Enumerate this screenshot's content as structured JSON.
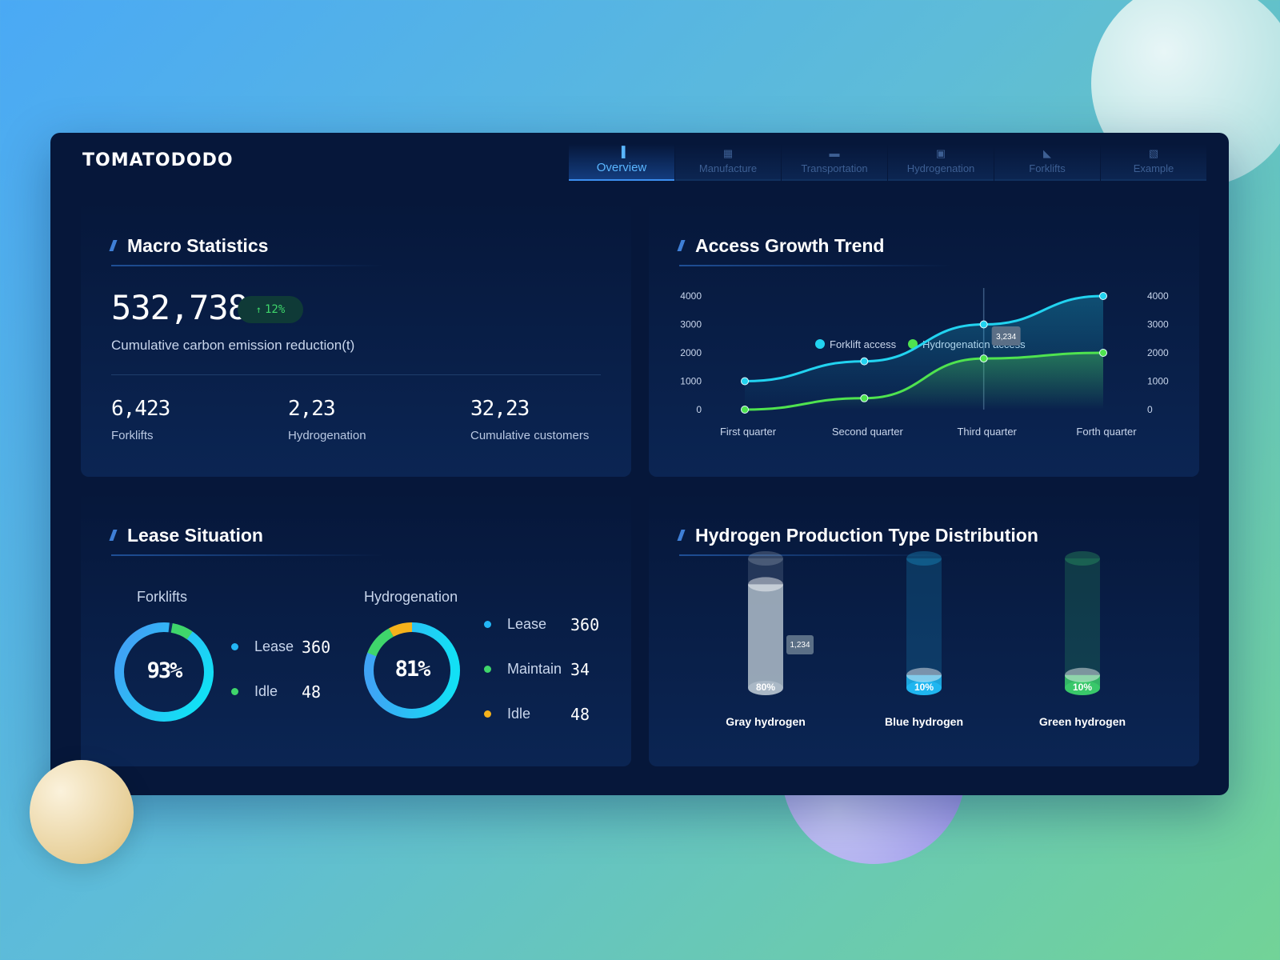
{
  "brand": {
    "logo": "TOMATODODO"
  },
  "nav": {
    "tabs": [
      {
        "label": "Overview",
        "icon": "bar-chart-icon",
        "glyph": "▐",
        "active": true
      },
      {
        "label": "Manufacture",
        "icon": "factory-icon",
        "glyph": "▦",
        "active": false
      },
      {
        "label": "Transportation",
        "icon": "truck-icon",
        "glyph": "▬",
        "active": false
      },
      {
        "label": "Hydrogenation",
        "icon": "fuel-pump-icon",
        "glyph": "▣",
        "active": false
      },
      {
        "label": "Forklifts",
        "icon": "forklift-icon",
        "glyph": "◣",
        "active": false
      },
      {
        "label": "Example",
        "icon": "picture-icon",
        "glyph": "▧",
        "active": false
      }
    ]
  },
  "macro": {
    "title": "Macro Statistics",
    "total_value": "532,738",
    "growth_arrow": "↑",
    "growth": "12%",
    "total_label": "Cumulative carbon emission reduction(t)",
    "stats": [
      {
        "value": "6,423",
        "label": "Forklifts"
      },
      {
        "value": "2,23",
        "label": "Hydrogenation"
      },
      {
        "value": "32,23",
        "label": "Cumulative customers"
      }
    ]
  },
  "access": {
    "title": "Access Growth Trend",
    "tooltip": "3,234"
  },
  "lease": {
    "title": "Lease Situation",
    "forklifts": {
      "label": "Forklifts",
      "percent": "93%",
      "percent_value": 93,
      "items": [
        {
          "label": "Lease",
          "value": "360",
          "color": "#23b6f5"
        },
        {
          "label": "Idle",
          "value": "48",
          "color": "#3fd66b"
        }
      ]
    },
    "hydrogenation": {
      "label": "Hydrogenation",
      "percent": "81%",
      "percent_value": 81,
      "items": [
        {
          "label": "Lease",
          "value": "360",
          "color": "#23b6f5"
        },
        {
          "label": "Maintain",
          "value": "34",
          "color": "#3fd66b"
        },
        {
          "label": "Idle",
          "value": "48",
          "color": "#f5b21b"
        }
      ]
    }
  },
  "hydrogen": {
    "title": "Hydrogen Production Type Distribution",
    "tooltip": "1,234",
    "types": [
      {
        "label": "Gray hydrogen",
        "percent": "80%",
        "value": 80,
        "color": "#aab8c6"
      },
      {
        "label": "Blue hydrogen",
        "percent": "10%",
        "value": 10,
        "color": "#1fb6f0"
      },
      {
        "label": "Green hydrogen",
        "percent": "10%",
        "value": 10,
        "color": "#39c86a"
      }
    ]
  },
  "chart_data": {
    "type": "line",
    "categories": [
      "First quarter",
      "Second quarter",
      "Third quarter",
      "Forth quarter"
    ],
    "series": [
      {
        "name": "Forklift access",
        "values": [
          1000,
          1700,
          3000,
          4000
        ],
        "color": "#22d3f0"
      },
      {
        "name": "Hydrogenation access",
        "values": [
          0,
          400,
          1800,
          2000
        ],
        "color": "#4fe34f"
      }
    ],
    "y_ticks_left": [
      "4000",
      "3000",
      "2000",
      "1000",
      "0"
    ],
    "y_ticks_right": [
      "4000",
      "3000",
      "2000",
      "1000",
      "0"
    ],
    "ylim": [
      0,
      4000
    ],
    "legend": "top-center",
    "grid": false
  }
}
